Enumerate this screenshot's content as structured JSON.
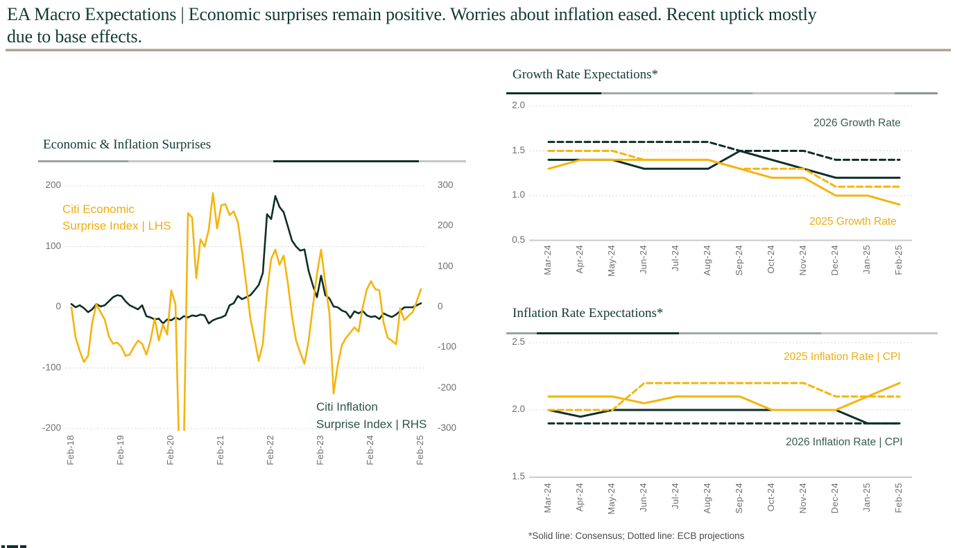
{
  "page": {
    "title": "EA Macro Expectations | Economic surprises remain positive. Worries about inflation eased. Recent uptick mostly due to base effects.",
    "footnote": "*Solid line: Consensus; Dotted line: ECB projections"
  },
  "colors": {
    "line_yellow": "#F5B40D",
    "line_dark": "#0E2E28",
    "heading": "#123A33",
    "axis_text": "#6E6E6E",
    "grid": "#D4D4D4",
    "baseline": "#C9C9C9",
    "separator_tan": "#B2A28E"
  },
  "chart_data": [
    {
      "id": "surprises",
      "type": "line",
      "title": "Economic & Inflation Surprises",
      "x_start": "Feb-18",
      "x_tick_labels": [
        "Feb-18",
        "Feb-19",
        "Feb-20",
        "Feb-21",
        "Feb-22",
        "Feb-23",
        "Feb-24",
        "Feb-25"
      ],
      "left_axis": {
        "ticks": [
          "200",
          "100",
          "0",
          "-100",
          "-200"
        ],
        "range": [
          -200,
          200
        ]
      },
      "right_axis": {
        "ticks": [
          "300",
          "200",
          "100",
          "0",
          "-100",
          "-200",
          "-300"
        ],
        "range": [
          -300,
          300
        ]
      },
      "grid": "dotted-horizontal",
      "series": [
        {
          "name": "Citi Economic Surprise Index | LHS",
          "legend_lines": [
            "Citi Economic",
            "Surprise Index | LHS"
          ],
          "axis": "left",
          "style": "solid",
          "color": "yellow",
          "frequency": "monthly Feb-2018 to Feb-2025",
          "values": [
            0,
            -50,
            -72,
            -90,
            -80,
            -25,
            5,
            -8,
            -20,
            -48,
            -60,
            -58,
            -65,
            -80,
            -78,
            -65,
            -55,
            -60,
            -78,
            -55,
            -18,
            -55,
            -28,
            -45,
            28,
            5,
            -270,
            -230,
            155,
            148,
            48,
            112,
            100,
            128,
            188,
            130,
            168,
            170,
            152,
            158,
            140,
            92,
            38,
            -18,
            -52,
            -88,
            -60,
            25,
            80,
            95,
            70,
            85,
            40,
            -15,
            -55,
            -75,
            -93,
            -55,
            0,
            55,
            95,
            40,
            -10,
            -142,
            -95,
            -62,
            -50,
            -42,
            -33,
            -40,
            0,
            30,
            43,
            30,
            28,
            -25,
            -50,
            -55,
            -61,
            -2,
            -21,
            -14,
            -8,
            10,
            30
          ]
        },
        {
          "name": "Citi Inflation Surprise Index | RHS",
          "legend_lines": [
            "Citi Inflation",
            "Surprise Index | RHS"
          ],
          "axis": "right",
          "style": "solid",
          "color": "dark",
          "frequency": "monthly Feb-2018 to Feb-2025",
          "values": [
            8,
            0,
            5,
            -2,
            -12,
            -5,
            8,
            2,
            5,
            15,
            25,
            30,
            28,
            15,
            5,
            0,
            -5,
            5,
            -22,
            -25,
            -30,
            -28,
            -40,
            -30,
            -32,
            -25,
            -30,
            -22,
            -25,
            -20,
            -22,
            -18,
            -20,
            -40,
            -32,
            -28,
            -25,
            -20,
            5,
            10,
            28,
            20,
            25,
            30,
            42,
            55,
            85,
            230,
            218,
            275,
            248,
            235,
            200,
            165,
            150,
            140,
            143,
            90,
            55,
            25,
            78,
            30,
            22,
            2,
            0,
            -8,
            -12,
            -26,
            -10,
            -15,
            -9,
            -20,
            -24,
            -22,
            -29,
            -15,
            -20,
            -24,
            -18,
            -9,
            0,
            0,
            0,
            5,
            10
          ]
        }
      ]
    },
    {
      "id": "growth",
      "type": "line",
      "title": "Growth Rate Expectations*",
      "x_labels": [
        "Mar-24",
        "Apr-24",
        "May-24",
        "Jun-24",
        "Jul-24",
        "Aug-24",
        "Sep-24",
        "Oct-24",
        "Nov-24",
        "Dec-24",
        "Jan-25",
        "Feb-25"
      ],
      "y_ticks": [
        "2.0",
        "1.5",
        "1.0",
        "0.5"
      ],
      "ylim": [
        0.5,
        2.0
      ],
      "grid": "dotted-horizontal",
      "legends": [
        {
          "label": "2026 Growth Rate",
          "color": "dark"
        },
        {
          "label": "2025 Growth Rate",
          "color": "yellow"
        }
      ],
      "series": [
        {
          "name": "2026 Growth Rate | Consensus",
          "style": "solid",
          "color": "dark",
          "values": [
            1.4,
            1.4,
            1.4,
            1.3,
            1.3,
            1.3,
            1.5,
            1.4,
            1.3,
            1.2,
            1.2,
            1.2
          ]
        },
        {
          "name": "2026 Growth Rate | ECB projections",
          "style": "dashed",
          "color": "dark",
          "values": [
            1.6,
            1.6,
            1.6,
            1.6,
            1.6,
            1.6,
            1.5,
            1.5,
            1.5,
            1.4,
            1.4,
            1.4
          ]
        },
        {
          "name": "2025 Growth Rate | Consensus",
          "style": "solid",
          "color": "yellow",
          "values": [
            1.3,
            1.4,
            1.4,
            1.4,
            1.4,
            1.4,
            1.3,
            1.2,
            1.2,
            1.0,
            1.0,
            0.9
          ]
        },
        {
          "name": "2025 Growth Rate | ECB projections",
          "style": "dashed",
          "color": "yellow",
          "values": [
            1.5,
            1.5,
            1.5,
            1.4,
            1.4,
            1.4,
            1.3,
            1.3,
            1.3,
            1.1,
            1.1,
            1.1
          ]
        }
      ]
    },
    {
      "id": "inflation",
      "type": "line",
      "title": "Inflation Rate Expectations*",
      "x_labels": [
        "Mar-24",
        "Apr-24",
        "May-24",
        "Jun-24",
        "Jul-24",
        "Aug-24",
        "Sep-24",
        "Oct-24",
        "Nov-24",
        "Dec-24",
        "Jan-25",
        "Feb-25"
      ],
      "y_ticks": [
        "2.5",
        "2.0",
        "1.5"
      ],
      "ylim": [
        1.5,
        2.5
      ],
      "grid": "dotted-horizontal",
      "legends": [
        {
          "label": "2025 Inflation Rate | CPI",
          "color": "yellow"
        },
        {
          "label": "2026 Inflation Rate | CPI",
          "color": "dark"
        }
      ],
      "series": [
        {
          "name": "2026 Inflation Rate | Consensus",
          "style": "solid",
          "color": "dark",
          "values": [
            2.0,
            1.95,
            2.0,
            2.0,
            2.0,
            2.0,
            2.0,
            2.0,
            2.0,
            2.0,
            1.9,
            1.9
          ]
        },
        {
          "name": "2026 Inflation Rate | ECB projections",
          "style": "dashed",
          "color": "dark",
          "values": [
            1.9,
            1.9,
            1.9,
            1.9,
            1.9,
            1.9,
            1.9,
            1.9,
            1.9,
            1.9,
            1.9,
            1.9
          ]
        },
        {
          "name": "2025 Inflation Rate | Consensus",
          "style": "solid",
          "color": "yellow",
          "values": [
            2.1,
            2.1,
            2.1,
            2.05,
            2.1,
            2.1,
            2.1,
            2.0,
            2.0,
            2.0,
            2.1,
            2.2
          ]
        },
        {
          "name": "2025 Inflation Rate | ECB projections",
          "style": "dashed",
          "color": "yellow",
          "values": [
            2.0,
            2.0,
            2.0,
            2.2,
            2.2,
            2.2,
            2.2,
            2.2,
            2.2,
            2.1,
            2.1,
            2.1
          ]
        }
      ]
    }
  ]
}
